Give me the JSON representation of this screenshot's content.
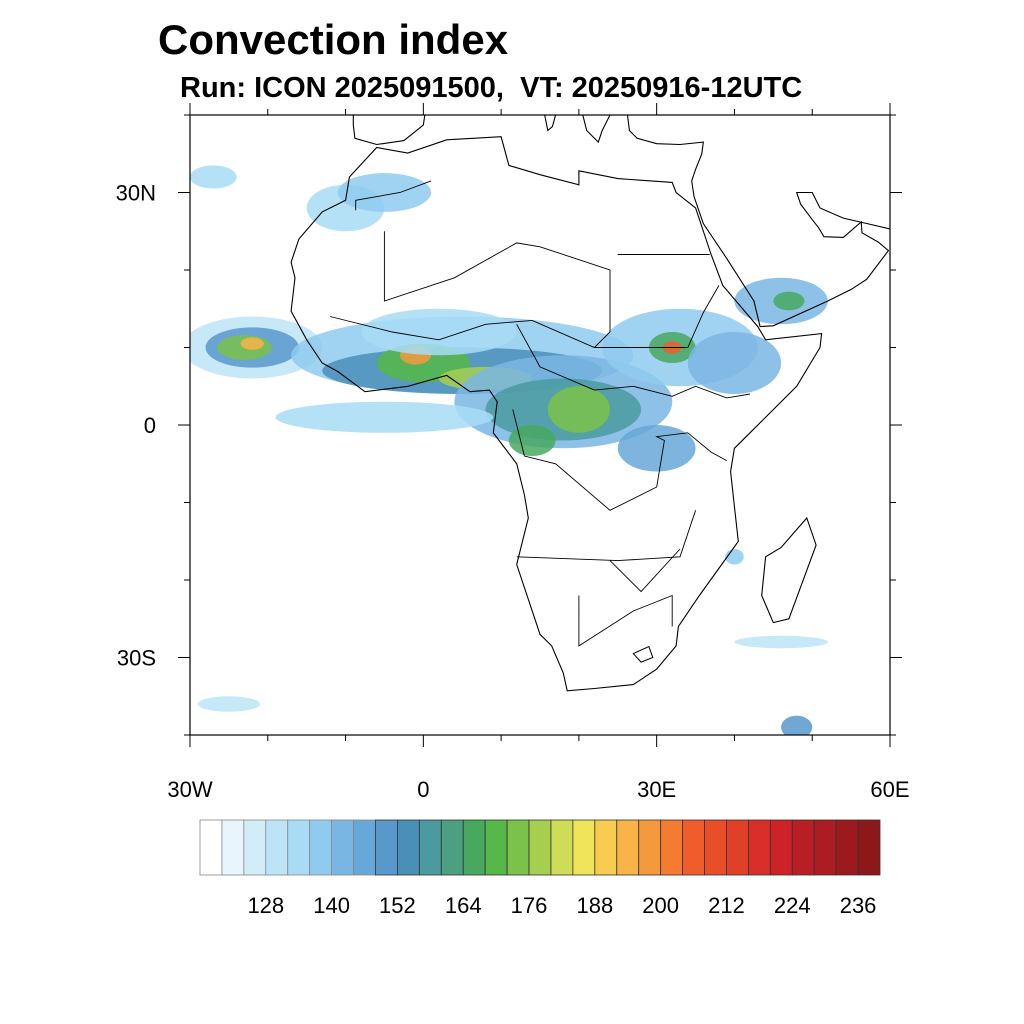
{
  "title": "Convection index",
  "subtitle": "Run: ICON 2025091500,  VT: 20250916-12UTC",
  "map": {
    "lon_range": [
      -30,
      60
    ],
    "lat_range": [
      -40,
      40
    ],
    "x_ticks": [
      {
        "value": -30,
        "label": "30W"
      },
      {
        "value": 0,
        "label": "0"
      },
      {
        "value": 30,
        "label": "30E"
      },
      {
        "value": 60,
        "label": "60E"
      }
    ],
    "y_ticks": [
      {
        "value": 30,
        "label": "30N"
      },
      {
        "value": 0,
        "label": "0"
      },
      {
        "value": -30,
        "label": "30S"
      }
    ],
    "minor_tick_step": 10
  },
  "colorbar": {
    "levels_first": 120,
    "levels_step": 4,
    "labels": [
      "128",
      "140",
      "152",
      "164",
      "176",
      "188",
      "200",
      "212",
      "224",
      "236"
    ],
    "colors": [
      "#ffffff",
      "#e8f5fc",
      "#d2ecf8",
      "#bde4f6",
      "#a8dcf6",
      "#8fcaef",
      "#7ab6e3",
      "#66a8d8",
      "#5898cd",
      "#4a8fb8",
      "#4a9aa0",
      "#4aa080",
      "#48a860",
      "#55b848",
      "#7ac24a",
      "#a6cf50",
      "#cedc58",
      "#f0e45a",
      "#f8cc50",
      "#f8b448",
      "#f59a3c",
      "#f47c30",
      "#ef5e2a",
      "#e84e28",
      "#e04028",
      "#d83028",
      "#cc2228",
      "#b81e24",
      "#ac1c22",
      "#9c1a1e",
      "#8c181a"
    ]
  }
}
